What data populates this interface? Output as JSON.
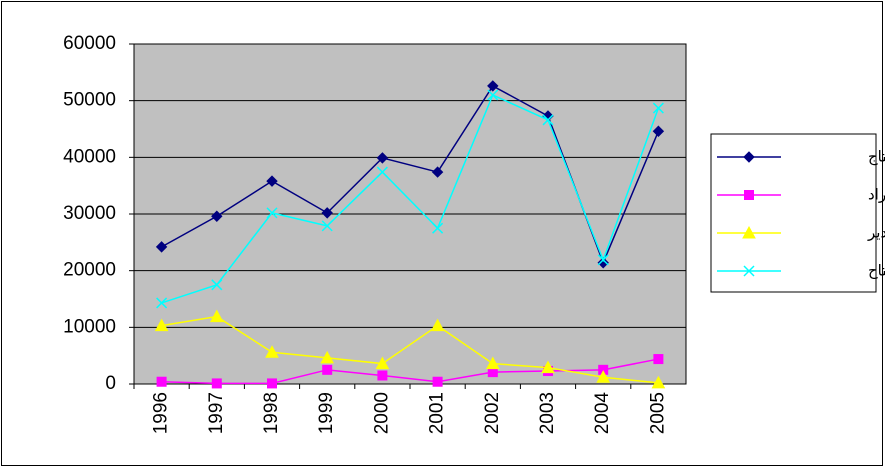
{
  "chart_data": {
    "type": "line",
    "categories": [
      "1996",
      "1997",
      "1998",
      "1999",
      "2000",
      "2001",
      "2002",
      "2003",
      "2004",
      "2005"
    ],
    "series": [
      {
        "name": "الانتاج",
        "color": "#000080",
        "marker": "diamond",
        "values": [
          24200,
          29600,
          35800,
          30200,
          39900,
          37400,
          52600,
          47300,
          21400,
          44600
        ]
      },
      {
        "name": "الاستيراد",
        "color": "#ff00ff",
        "marker": "square",
        "values": [
          400,
          100,
          100,
          2500,
          1500,
          400,
          2100,
          2300,
          2500,
          4400
        ]
      },
      {
        "name": "التصدير",
        "color": "#ffff00",
        "marker": "triangle",
        "values": [
          10300,
          11900,
          5600,
          4600,
          3600,
          10300,
          3600,
          2900,
          1200,
          200
        ]
      },
      {
        "name": "المتاح",
        "color": "#00ffff",
        "marker": "x",
        "values": [
          14300,
          17500,
          30200,
          27900,
          37400,
          27500,
          51000,
          46600,
          21900,
          48700
        ]
      }
    ],
    "ylim": [
      0,
      60000
    ],
    "yticks": [
      0,
      10000,
      20000,
      30000,
      40000,
      50000,
      60000
    ],
    "grid": true,
    "legend": "right"
  }
}
